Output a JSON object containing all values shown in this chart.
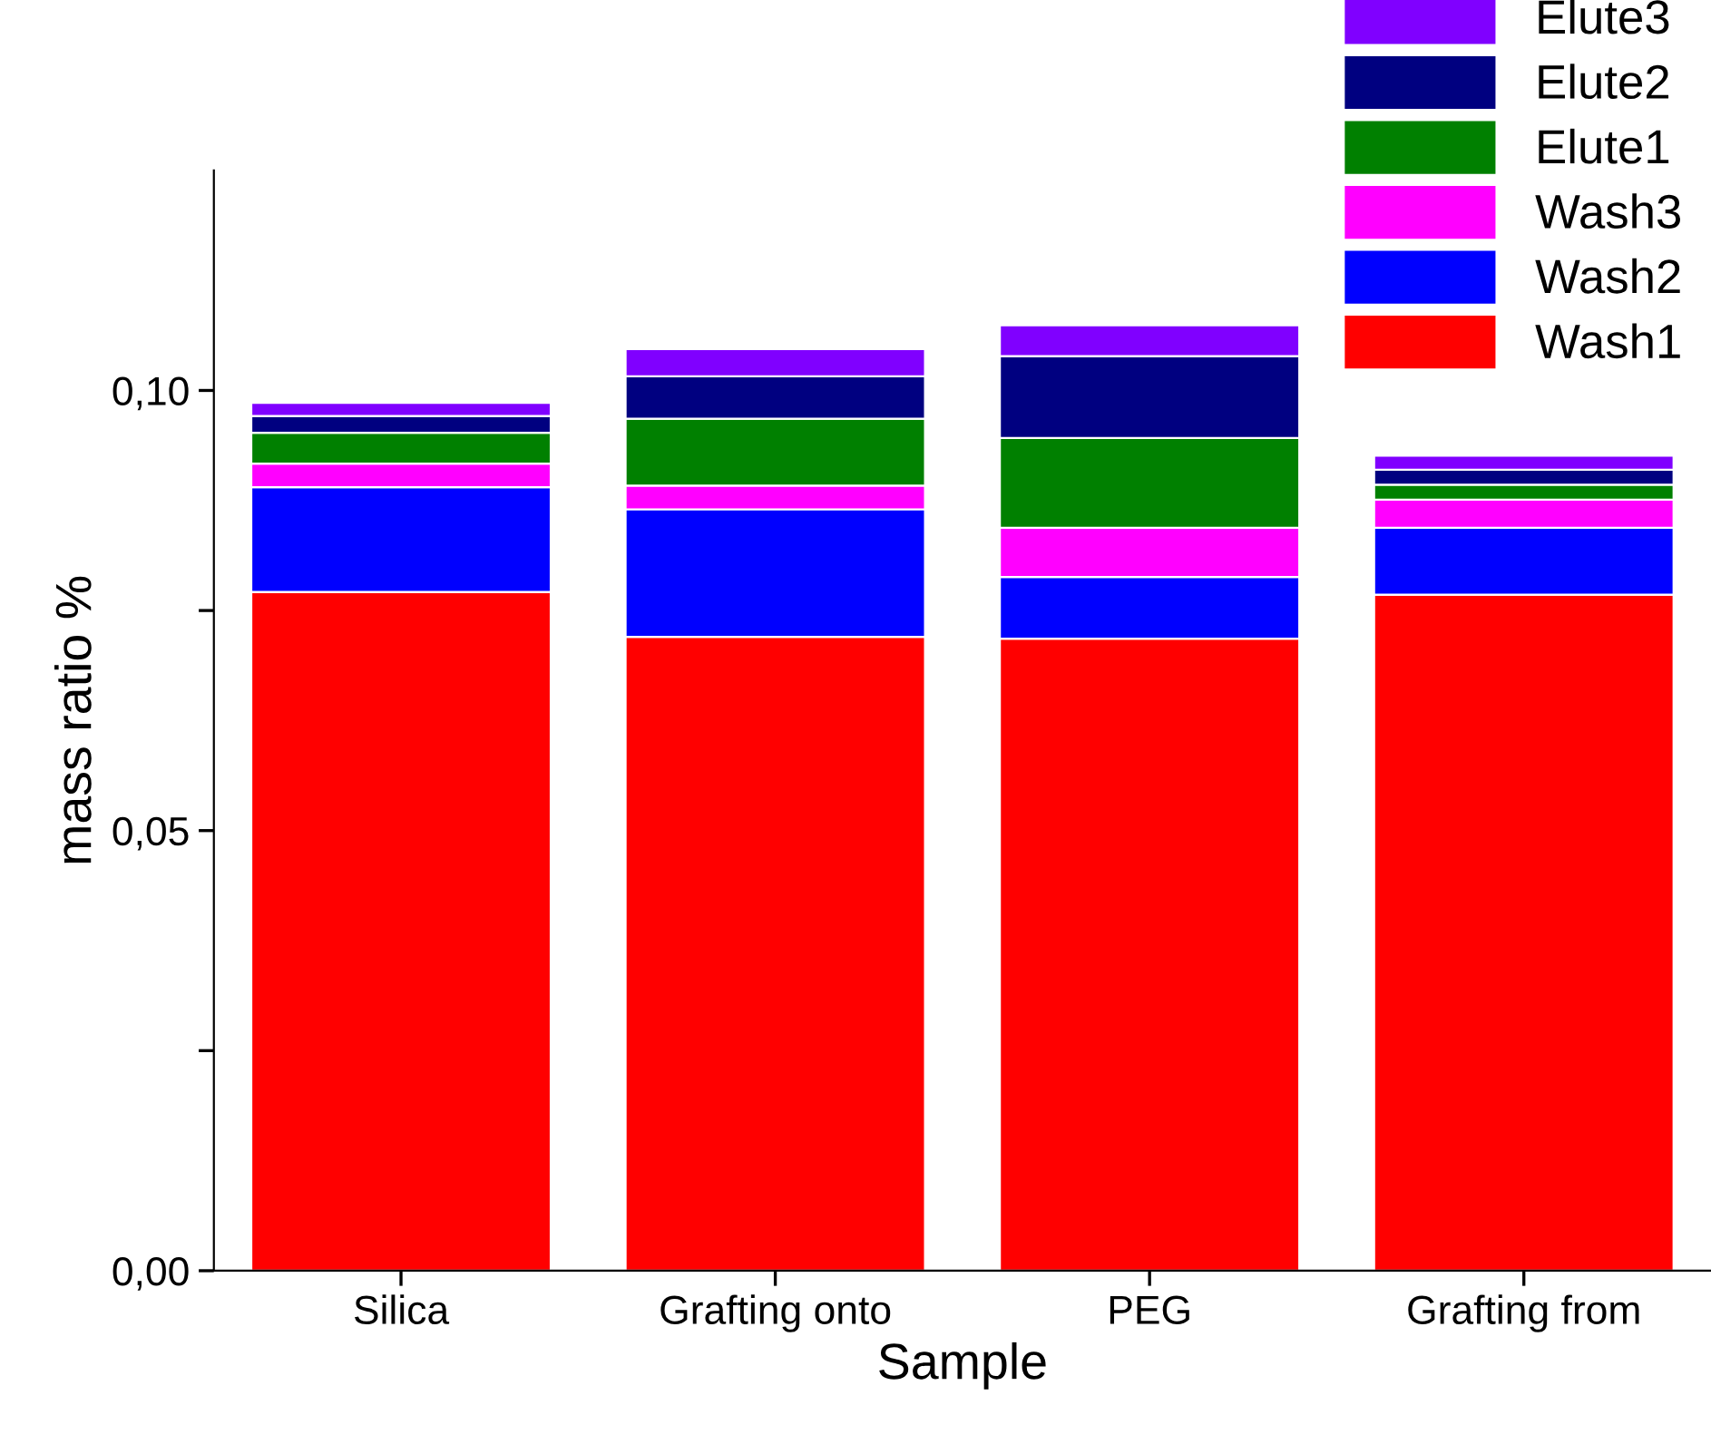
{
  "chart_data": {
    "type": "bar",
    "stacked": true,
    "xlabel": "Sample",
    "ylabel": "mass ratio %",
    "categories": [
      "Silica",
      "Grafting onto",
      "PEG",
      "Grafting from"
    ],
    "series": [
      {
        "name": "Wash1",
        "color": "#ff0000",
        "values": [
          0.0771,
          0.072,
          0.0718,
          0.0768
        ]
      },
      {
        "name": "Wash2",
        "color": "#0000ff",
        "values": [
          0.0119,
          0.0145,
          0.007,
          0.0076
        ]
      },
      {
        "name": "Wash3",
        "color": "#ff00ff",
        "values": [
          0.0027,
          0.0027,
          0.0056,
          0.0032
        ]
      },
      {
        "name": "Elute1",
        "color": "#008000",
        "values": [
          0.0035,
          0.0076,
          0.0102,
          0.0017
        ]
      },
      {
        "name": "Elute2",
        "color": "#000080",
        "values": [
          0.0019,
          0.0048,
          0.0093,
          0.0017
        ]
      },
      {
        "name": "Elute3",
        "color": "#8000ff",
        "values": [
          0.0015,
          0.0031,
          0.0035,
          0.0016
        ]
      }
    ],
    "ylim": [
      0,
      0.125
    ],
    "yticks": [
      {
        "value": 0,
        "label": "0,00"
      },
      {
        "value": 0.025,
        "label": null
      },
      {
        "value": 0.05,
        "label": "0,05"
      },
      {
        "value": 0.075,
        "label": null
      },
      {
        "value": 0.1,
        "label": "0,10"
      }
    ],
    "legend": "top right",
    "grid": false
  }
}
